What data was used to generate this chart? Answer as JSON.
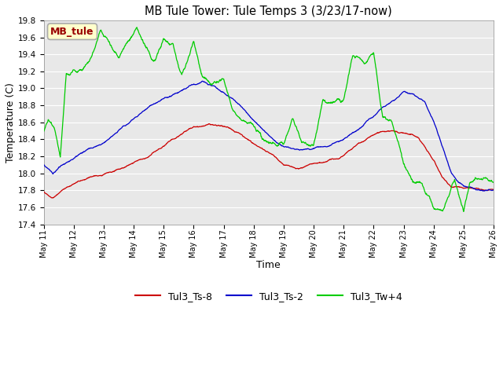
{
  "title": "MB Tule Tower: Tule Temps 3 (3/23/17-now)",
  "xlabel": "Time",
  "ylabel": "Temperature (C)",
  "ylim": [
    17.4,
    19.8
  ],
  "yticks": [
    17.4,
    17.6,
    17.8,
    18.0,
    18.2,
    18.4,
    18.6,
    18.8,
    19.0,
    19.2,
    19.4,
    19.6,
    19.8
  ],
  "xtick_labels": [
    "May 11",
    "May 12",
    "May 13",
    "May 14",
    "May 15",
    "May 16",
    "May 17",
    "May 18",
    "May 19",
    "May 20",
    "May 21",
    "May 22",
    "May 23",
    "May 24",
    "May 25",
    "May 26"
  ],
  "legend_labels": [
    "Tul3_Ts-8",
    "Tul3_Ts-2",
    "Tul3_Tw+4"
  ],
  "legend_colors": [
    "#cc0000",
    "#0000cc",
    "#00cc00"
  ],
  "line_colors": [
    "#cc0000",
    "#0000cc",
    "#00cc00"
  ],
  "inset_label": "MB_tule",
  "inset_text_color": "#990000",
  "inset_bg": "#ffffcc",
  "inset_border": "#aaaaaa",
  "plot_bg": "#e8e8e8",
  "fig_bg": "#ffffff",
  "grid_color": "#ffffff"
}
